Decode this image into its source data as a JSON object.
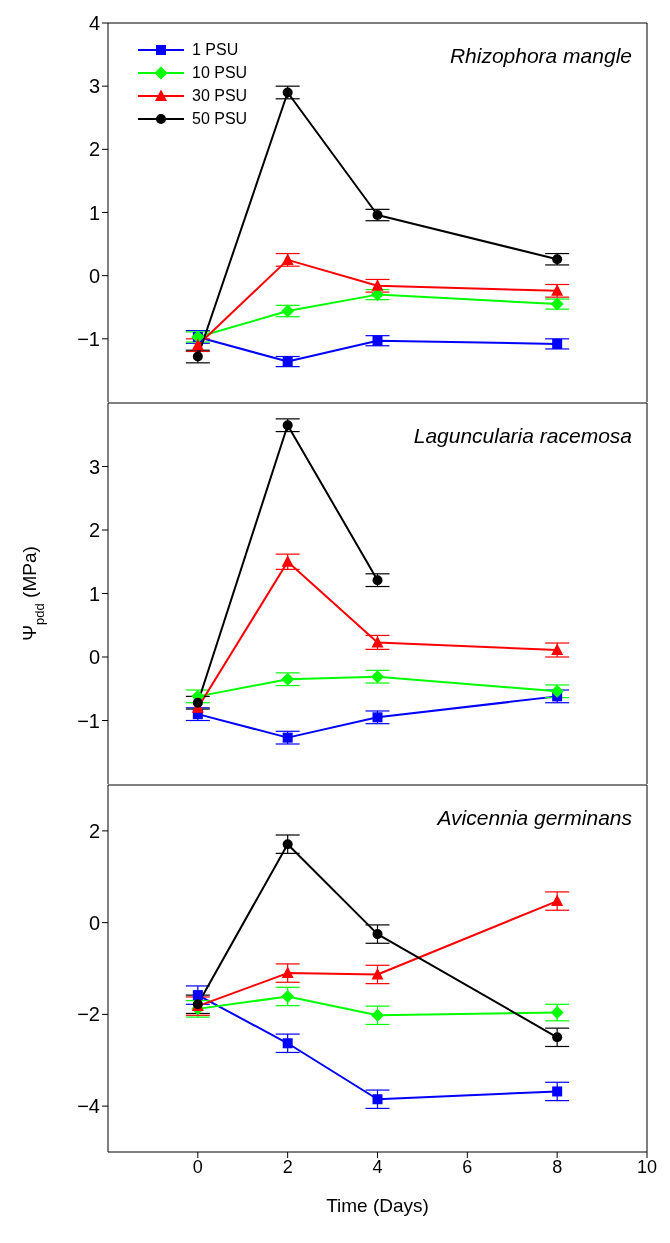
{
  "chart_data": [
    {
      "type": "line",
      "title": "Rhizophora mangle",
      "x": [
        0,
        2,
        4,
        8
      ],
      "xlim": [
        -2,
        10
      ],
      "xticks": [
        0,
        2,
        4,
        6,
        8,
        10
      ],
      "ylim": [
        -2,
        4
      ],
      "yticks": [
        -1,
        0,
        1,
        2,
        3,
        4
      ],
      "tick_labels": "y",
      "legend": "top left",
      "grid": false,
      "series": [
        {
          "name": "1 PSU",
          "color": "#0000ff",
          "marker": "square",
          "values": [
            -0.97,
            -1.36,
            -1.03,
            -1.08
          ],
          "errors": [
            0.1,
            0.08,
            0.08,
            0.08
          ]
        },
        {
          "name": "10 PSU",
          "color": "#00ff00",
          "marker": "diamond",
          "values": [
            -0.97,
            -0.56,
            -0.3,
            -0.45
          ],
          "errors": [
            0.08,
            0.09,
            0.08,
            0.08
          ]
        },
        {
          "name": "30 PSU",
          "color": "#ff0000",
          "marker": "triangle",
          "values": [
            -1.1,
            0.25,
            -0.16,
            -0.24
          ],
          "errors": [
            0.1,
            0.1,
            0.1,
            0.1
          ]
        },
        {
          "name": "50 PSU",
          "color": "#000000",
          "marker": "circle",
          "values": [
            -1.28,
            2.9,
            0.96,
            0.26
          ],
          "errors": [
            0.1,
            0.1,
            0.09,
            0.09
          ]
        }
      ]
    },
    {
      "type": "line",
      "title": "Laguncularia racemosa",
      "ylabel": "Ψ$_{pdd}$ (MPa)",
      "x": [
        0,
        2,
        4,
        8
      ],
      "xlim": [
        -2,
        10
      ],
      "xticks": [
        0,
        2,
        4,
        6,
        8,
        10
      ],
      "ylim": [
        -2,
        4
      ],
      "yticks": [
        -1,
        0,
        1,
        2,
        3
      ],
      "tick_labels": "y",
      "legend": false,
      "grid": false,
      "series": [
        {
          "color": "#0000ff",
          "marker": "square",
          "values": [
            -0.9,
            -1.27,
            -0.95,
            -0.62
          ],
          "errors": [
            0.1,
            0.1,
            0.1,
            0.1
          ]
        },
        {
          "color": "#00ff00",
          "marker": "diamond",
          "values": [
            -0.62,
            -0.35,
            -0.31,
            -0.54
          ],
          "errors": [
            0.1,
            0.1,
            0.1,
            0.1
          ]
        },
        {
          "color": "#ff0000",
          "marker": "triangle",
          "values": [
            -0.8,
            1.5,
            0.23,
            0.11
          ],
          "errors": [
            null,
            0.12,
            0.11,
            0.11
          ]
        },
        {
          "color": "#000000",
          "marker": "circle",
          "values": [
            -0.72,
            3.65,
            1.21,
            null
          ],
          "errors": [
            0.1,
            0.1,
            0.1,
            null
          ]
        }
      ]
    },
    {
      "type": "line",
      "title": "Avicennia germinans",
      "xlabel": "Time (Days)",
      "x": [
        0,
        2,
        4,
        8
      ],
      "xlim": [
        -2,
        10
      ],
      "xticks": [
        0,
        2,
        4,
        6,
        8,
        10
      ],
      "ylim": [
        -5,
        3
      ],
      "yticks": [
        -4,
        -2,
        0,
        2
      ],
      "legend": false,
      "grid": false,
      "series": [
        {
          "color": "#0000ff",
          "marker": "square",
          "values": [
            -1.58,
            -2.63,
            -3.85,
            -3.68
          ],
          "errors": [
            0.2,
            0.2,
            0.2,
            0.2
          ]
        },
        {
          "color": "#00ff00",
          "marker": "diamond",
          "values": [
            -1.88,
            -1.61,
            -2.02,
            -1.96
          ],
          "errors": [
            0.18,
            0.2,
            0.2,
            0.18
          ]
        },
        {
          "color": "#ff0000",
          "marker": "triangle",
          "values": [
            -1.82,
            -1.1,
            -1.13,
            0.47
          ],
          "errors": [
            0.2,
            0.2,
            0.2,
            0.2
          ]
        },
        {
          "color": "#000000",
          "marker": "circle",
          "values": [
            -1.78,
            1.71,
            -0.25,
            -2.5
          ],
          "errors": [
            0.2,
            0.2,
            0.2,
            0.2
          ]
        }
      ]
    }
  ]
}
